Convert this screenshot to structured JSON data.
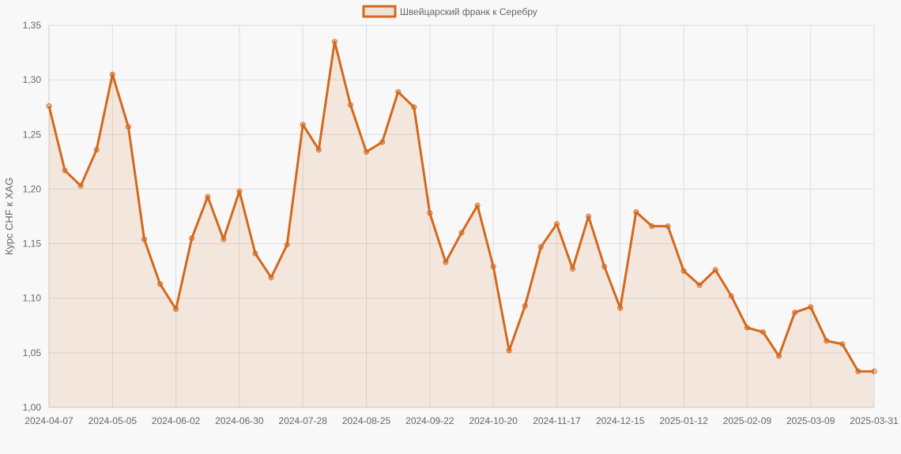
{
  "chart_data": {
    "type": "line",
    "title": "",
    "xlabel": "",
    "ylabel": "Курс CHF к XAG",
    "legend": {
      "position": "top",
      "entries": [
        "Швейцарский франк к Серебру"
      ]
    },
    "grid": true,
    "filled_area": true,
    "ylim": [
      1.0,
      1.35
    ],
    "y_ticks": [
      "1,00",
      "1,05",
      "1,10",
      "1,15",
      "1,20",
      "1,25",
      "1,30",
      "1,35"
    ],
    "x_tick_labels": [
      "2024-04-07",
      "2024-05-05",
      "2024-06-02",
      "2024-06-30",
      "2024-07-28",
      "2024-08-25",
      "2024-09-22",
      "2024-10-20",
      "2024-11-17",
      "2024-12-15",
      "2025-01-12",
      "2025-02-09",
      "2025-03-09",
      "2025-03-31"
    ],
    "series": [
      {
        "name": "Швейцарский франк к Серебру",
        "color": "#d2691e",
        "values": [
          1.276,
          1.217,
          1.203,
          1.236,
          1.305,
          1.257,
          1.154,
          1.113,
          1.09,
          1.155,
          1.193,
          1.154,
          1.198,
          1.141,
          1.119,
          1.149,
          1.259,
          1.236,
          1.335,
          1.277,
          1.234,
          1.243,
          1.289,
          1.275,
          1.178,
          1.133,
          1.16,
          1.185,
          1.129,
          1.052,
          1.093,
          1.147,
          1.168,
          1.127,
          1.175,
          1.129,
          1.091,
          1.179,
          1.166,
          1.166,
          1.125,
          1.112,
          1.126,
          1.102,
          1.073,
          1.069,
          1.047,
          1.087,
          1.092,
          1.061,
          1.058,
          1.033,
          1.033
        ]
      }
    ]
  }
}
